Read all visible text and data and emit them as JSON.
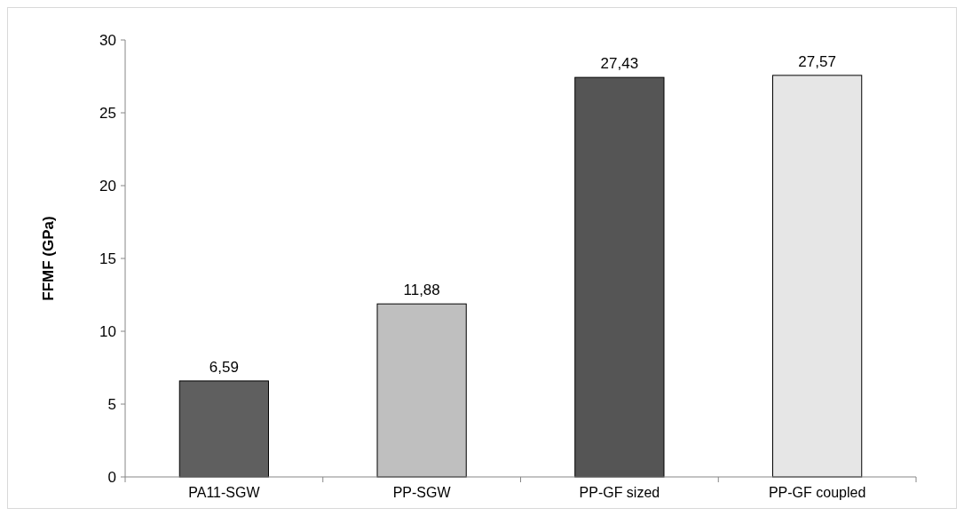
{
  "chart_data": {
    "type": "bar",
    "ylabel": "FFMF (GPa)",
    "categories": [
      "PA11-SGW",
      "PP-SGW",
      "PP-GF sized",
      "PP-GF coupled"
    ],
    "values": [
      6.59,
      11.88,
      27.43,
      27.57
    ],
    "value_labels": [
      "6,59",
      "11,88",
      "27,43",
      "27,57"
    ],
    "colors": [
      "#5f5f5f",
      "#bfbfbf",
      "#555555",
      "#e6e6e6"
    ],
    "ylim": [
      0,
      30
    ],
    "yticks": [
      0,
      5,
      10,
      15,
      20,
      25,
      30
    ],
    "grid": false
  }
}
